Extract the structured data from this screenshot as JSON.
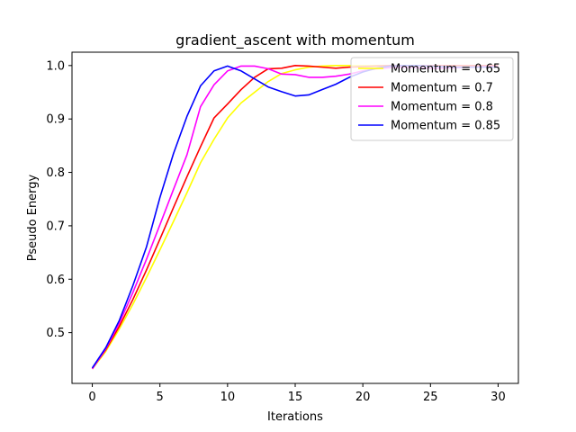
{
  "chart_data": {
    "type": "line",
    "title": "gradient_ascent with momentum",
    "xlabel": "Iterations",
    "ylabel": "Pseudo Energy",
    "xlim": [
      -1.5,
      31.5
    ],
    "ylim": [
      0.405,
      1.025
    ],
    "x_ticks": [
      0,
      5,
      10,
      15,
      20,
      25,
      30
    ],
    "y_ticks": [
      0.5,
      0.6,
      0.7,
      0.8,
      0.9,
      1.0
    ],
    "x_tick_labels": [
      "0",
      "5",
      "10",
      "15",
      "20",
      "25",
      "30"
    ],
    "y_tick_labels": [
      "0.5",
      "0.6",
      "0.7",
      "0.8",
      "0.9",
      "1.0"
    ],
    "grid": false,
    "legend_position": "upper right",
    "x": [
      0,
      1,
      2,
      3,
      4,
      5,
      6,
      7,
      8,
      9,
      10,
      11,
      12,
      13,
      14,
      15,
      16,
      17,
      18,
      19,
      20,
      21,
      22,
      23,
      24,
      25,
      26,
      27,
      28,
      29,
      30
    ],
    "series": [
      {
        "name": "Momentum = 0.65",
        "color": "#ffff00",
        "values": [
          0.432,
          0.465,
          0.507,
          0.553,
          0.603,
          0.655,
          0.708,
          0.762,
          0.818,
          0.862,
          0.902,
          0.93,
          0.95,
          0.97,
          0.985,
          0.992,
          0.997,
          0.999,
          1.0,
          1.0,
          1.0,
          1.0,
          1.0,
          1.0,
          1.0,
          1.0,
          1.0,
          1.0,
          1.0,
          1.0,
          1.0
        ]
      },
      {
        "name": "Momentum = 0.7",
        "color": "#ff0000",
        "values": [
          0.433,
          0.468,
          0.512,
          0.562,
          0.617,
          0.675,
          0.734,
          0.792,
          0.848,
          0.902,
          0.928,
          0.955,
          0.978,
          0.994,
          0.995,
          1.0,
          0.999,
          0.997,
          0.995,
          0.997,
          0.998,
          0.999,
          1.0,
          1.0,
          1.0,
          1.0,
          1.0,
          1.0,
          1.0,
          1.0,
          1.0
        ]
      },
      {
        "name": "Momentum = 0.8",
        "color": "#ff00ff",
        "values": [
          0.432,
          0.47,
          0.518,
          0.575,
          0.637,
          0.702,
          0.768,
          0.833,
          0.923,
          0.964,
          0.99,
          0.999,
          0.999,
          0.994,
          0.984,
          0.983,
          0.978,
          0.978,
          0.98,
          0.984,
          0.99,
          0.994,
          0.996,
          0.997,
          0.996,
          0.995,
          0.995,
          0.996,
          0.997,
          0.998,
          0.998
        ]
      },
      {
        "name": "Momentum = 0.85",
        "color": "#0000ff",
        "values": [
          0.434,
          0.472,
          0.523,
          0.588,
          0.66,
          0.753,
          0.835,
          0.905,
          0.962,
          0.99,
          0.999,
          0.99,
          0.975,
          0.96,
          0.951,
          0.943,
          0.945,
          0.955,
          0.965,
          0.978,
          0.988,
          0.995,
          0.999,
          1.0,
          1.0,
          0.999,
          0.998,
          0.997,
          0.997,
          0.997,
          0.997
        ]
      }
    ]
  }
}
